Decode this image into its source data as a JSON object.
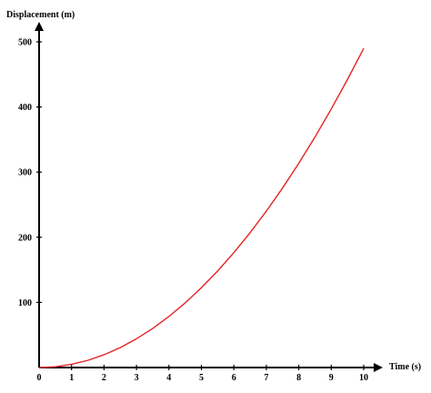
{
  "chart_data": {
    "type": "line",
    "title": "",
    "xlabel": "Time (s)",
    "ylabel": "Displacement (m)",
    "xlim": [
      0,
      10
    ],
    "ylim": [
      0,
      500
    ],
    "x_ticks": [
      "0",
      "1",
      "2",
      "3",
      "4",
      "5",
      "6",
      "7",
      "8",
      "9",
      "10"
    ],
    "y_ticks": [
      "100",
      "200",
      "300",
      "400",
      "500"
    ],
    "grid": false,
    "legend": "none",
    "series": [
      {
        "color": "#e52323",
        "x": [
          0,
          0.5,
          1,
          1.5,
          2,
          2.5,
          3,
          3.5,
          4,
          4.5,
          5,
          5.5,
          6,
          6.5,
          7,
          7.5,
          8,
          8.5,
          9,
          9.5,
          10
        ],
        "values": [
          0,
          1.2,
          4.9,
          11.0,
          19.6,
          30.6,
          44.1,
          60.0,
          78.4,
          99.2,
          122.5,
          148.2,
          176.4,
          207.0,
          240.1,
          275.6,
          313.6,
          354.0,
          396.9,
          442.2,
          490
        ]
      }
    ]
  }
}
